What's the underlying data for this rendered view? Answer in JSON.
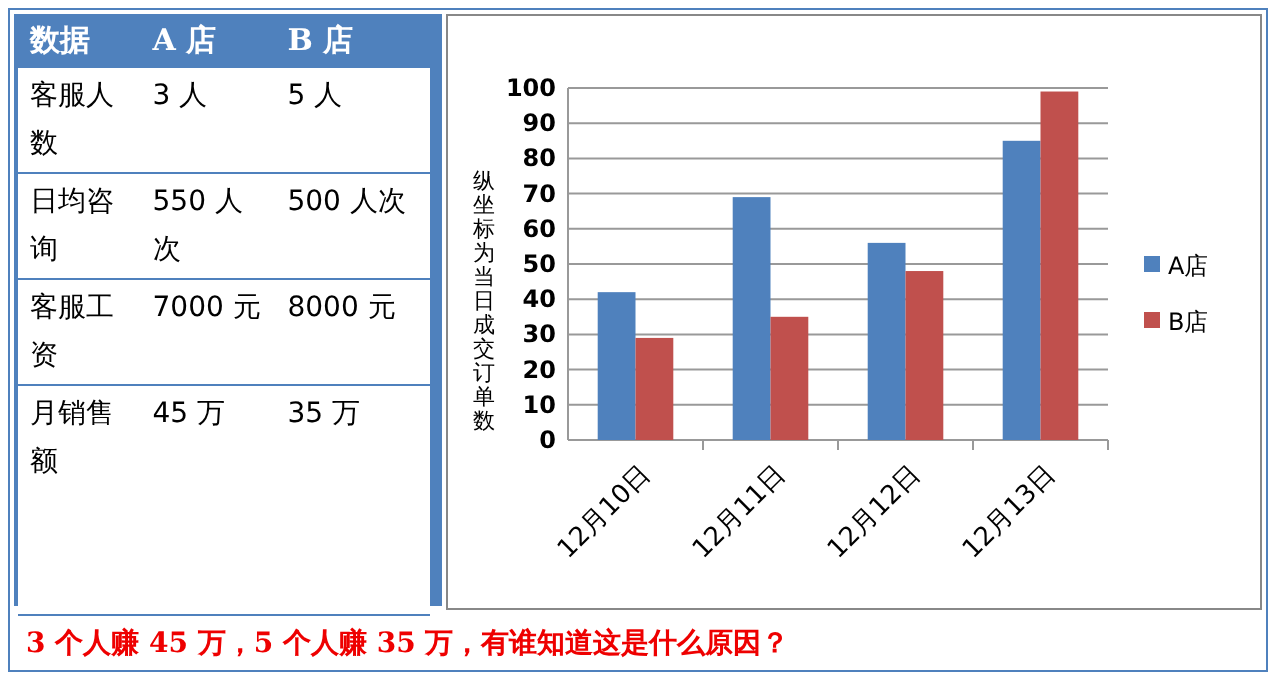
{
  "chart_data": [
    {
      "type": "other",
      "categories": [
        "数据",
        "A 店",
        "B 店"
      ],
      "annotations": [
        "客服人数",
        "3 人",
        "5 人",
        "日均咨询",
        "550 人次",
        "500 人次",
        "客服工资",
        "7000 元",
        "8000 元",
        "月销售额",
        "45 万",
        "35 万"
      ]
    },
    {
      "type": "bar",
      "categories": [
        "12月10日",
        "12月11日",
        "12月12日",
        "12月13日"
      ],
      "series": [
        {
          "name": "A店",
          "color": "#4f81bd",
          "values": [
            42,
            69,
            56,
            85
          ]
        },
        {
          "name": "B店",
          "color": "#c0504d",
          "values": [
            29,
            35,
            48,
            99
          ]
        }
      ],
      "ylabel": "纵坐标为当日成交订单数",
      "ylim": [
        0,
        100
      ],
      "yticks": [
        0,
        10,
        20,
        30,
        40,
        50,
        60,
        70,
        80,
        90,
        100
      ],
      "grid": "y",
      "legend": "right",
      "annotations": [
        "3 个人赚 45 万，5 个人赚 35 万，有谁知道这是什么原因？"
      ]
    }
  ]
}
